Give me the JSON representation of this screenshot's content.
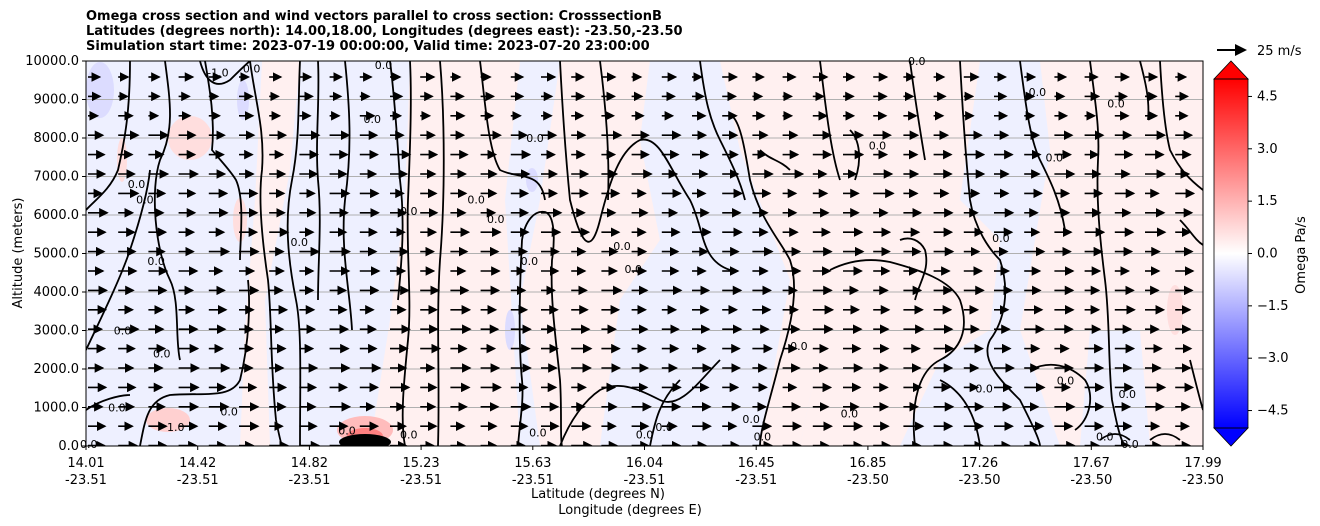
{
  "titles": {
    "line1": "Omega cross section and wind vectors parallel to cross section: CrosssectionB",
    "line2": "Latitudes (degrees north): 14.00,18.00, Longitudes (degrees east): -23.50,-23.50",
    "line3": "Simulation start time: 2023-07-19 00:00:00, Valid time: 2023-07-20 23:00:00"
  },
  "chart_data": {
    "type": "heatmap",
    "title": "Omega cross section and wind vectors parallel to cross section: CrosssectionB",
    "ylabel": "Altitude (meters)",
    "xlabel_line1": "Latitude (degrees N)",
    "xlabel_line2": "Longitude (degrees E)",
    "ylim": [
      0,
      10000
    ],
    "yticks": [
      "0.0",
      "1000.0",
      "2000.0",
      "3000.0",
      "4000.0",
      "5000.0",
      "6000.0",
      "7000.0",
      "8000.0",
      "9000.0",
      "10000.0"
    ],
    "yvalues": [
      0,
      1000,
      2000,
      3000,
      4000,
      5000,
      6000,
      7000,
      8000,
      9000,
      10000
    ],
    "xticks_lat": [
      "14.01",
      "14.42",
      "14.82",
      "15.23",
      "15.63",
      "16.04",
      "16.45",
      "16.85",
      "17.26",
      "17.67",
      "17.99"
    ],
    "xticks_lon": [
      "-23.51",
      "-23.51",
      "-23.51",
      "-23.51",
      "-23.51",
      "-23.51",
      "-23.51",
      "-23.50",
      "-23.50",
      "-23.50",
      "-23.50"
    ],
    "grid": "horizontal",
    "colorbar": {
      "label": "Omega Pa/s",
      "range": [
        -5,
        5
      ],
      "ticks": [
        "4.5",
        "3.0",
        "1.5",
        "0.0",
        "−1.5",
        "−3.0",
        "−4.5"
      ],
      "tick_values": [
        4.5,
        3.0,
        1.5,
        0.0,
        -1.5,
        -3.0,
        -4.5
      ],
      "colormap": "bwr"
    },
    "vector_key": "25 m/s",
    "contour_labels": [
      {
        "text": "0.0",
        "lat": 14.02,
        "alt": 50
      },
      {
        "text": "0.0",
        "lat": 14.12,
        "alt": 1000
      },
      {
        "text": "1.0",
        "lat": 14.33,
        "alt": 500
      },
      {
        "text": "0.0",
        "lat": 14.14,
        "alt": 3000
      },
      {
        "text": "0.0",
        "lat": 14.28,
        "alt": 2400
      },
      {
        "text": "0.0",
        "lat": 14.26,
        "alt": 4800
      },
      {
        "text": "0.0",
        "lat": 14.22,
        "alt": 6400
      },
      {
        "text": "0.0",
        "lat": 14.19,
        "alt": 6800
      },
      {
        "text": "-1.0",
        "lat": 14.48,
        "alt": 9700
      },
      {
        "text": "0.0",
        "lat": 14.52,
        "alt": 900
      },
      {
        "text": "0.0",
        "lat": 14.6,
        "alt": 9800
      },
      {
        "text": "0.0",
        "lat": 14.77,
        "alt": 5300
      },
      {
        "text": "0.0",
        "lat": 14.94,
        "alt": 400
      },
      {
        "text": "0.0",
        "lat": 15.03,
        "alt": 8500
      },
      {
        "text": "0.0",
        "lat": 15.07,
        "alt": 9900
      },
      {
        "text": "0.0",
        "lat": 15.16,
        "alt": 6100
      },
      {
        "text": "0.0",
        "lat": 15.16,
        "alt": 300
      },
      {
        "text": "0.0",
        "lat": 15.4,
        "alt": 6400
      },
      {
        "text": "0.0",
        "lat": 15.47,
        "alt": 5900
      },
      {
        "text": "0.0",
        "lat": 15.61,
        "alt": 8000
      },
      {
        "text": "0.0",
        "lat": 15.59,
        "alt": 4800
      },
      {
        "text": "0.0",
        "lat": 15.62,
        "alt": 350
      },
      {
        "text": "0.0",
        "lat": 15.92,
        "alt": 5200
      },
      {
        "text": "0.0",
        "lat": 15.96,
        "alt": 4600
      },
      {
        "text": "0.0",
        "lat": 16.0,
        "alt": 300
      },
      {
        "text": "0.0",
        "lat": 16.07,
        "alt": 500
      },
      {
        "text": "0.0",
        "lat": 16.38,
        "alt": 700
      },
      {
        "text": "0.0",
        "lat": 16.42,
        "alt": 250
      },
      {
        "text": "0.0",
        "lat": 16.55,
        "alt": 2600
      },
      {
        "text": "0.0",
        "lat": 16.73,
        "alt": 850
      },
      {
        "text": "0.0",
        "lat": 16.83,
        "alt": 7800
      },
      {
        "text": "0.0",
        "lat": 16.97,
        "alt": 10000
      },
      {
        "text": "0.0",
        "lat": 17.21,
        "alt": 1500
      },
      {
        "text": "0.0",
        "lat": 17.27,
        "alt": 5400
      },
      {
        "text": "0.0",
        "lat": 17.4,
        "alt": 9200
      },
      {
        "text": "0.0",
        "lat": 17.46,
        "alt": 7500
      },
      {
        "text": "0.0",
        "lat": 17.5,
        "alt": 1700
      },
      {
        "text": "0.0",
        "lat": 17.64,
        "alt": 250
      },
      {
        "text": "0.0",
        "lat": 17.68,
        "alt": 8900
      },
      {
        "text": "0.0",
        "lat": 17.72,
        "alt": 1350
      },
      {
        "text": "0.0",
        "lat": 17.73,
        "alt": 50
      }
    ]
  }
}
